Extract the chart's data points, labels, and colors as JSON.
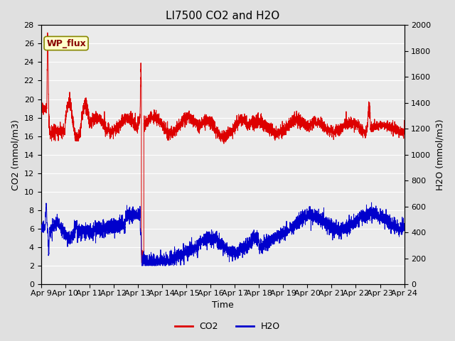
{
  "title": "LI7500 CO2 and H2O",
  "xlabel": "Time",
  "ylabel_left": "CO2 (mmol/m3)",
  "ylabel_right": "H2O (mmol/m3)",
  "ylim_left": [
    0,
    28
  ],
  "ylim_right": [
    0,
    2000
  ],
  "yticks_left": [
    0,
    2,
    4,
    6,
    8,
    10,
    12,
    14,
    16,
    18,
    20,
    22,
    24,
    26,
    28
  ],
  "yticks_right": [
    0,
    200,
    400,
    600,
    800,
    1000,
    1200,
    1400,
    1600,
    1800,
    2000
  ],
  "xtick_labels": [
    "Apr 9",
    "Apr 10",
    "Apr 11",
    "Apr 12",
    "Apr 13",
    "Apr 14",
    "Apr 15",
    "Apr 16",
    "Apr 17",
    "Apr 18",
    "Apr 19",
    "Apr 20",
    "Apr 21",
    "Apr 22",
    "Apr 23",
    "Apr 24"
  ],
  "annotation_text": "WP_flux",
  "co2_color": "#DD0000",
  "h2o_color": "#0000CC",
  "fig_bg_color": "#E0E0E0",
  "plot_bg_color": "#EBEBEB",
  "grid_color": "#FFFFFF",
  "legend_co2": "CO2",
  "legend_h2o": "H2O",
  "title_fontsize": 11,
  "axis_label_fontsize": 9,
  "tick_fontsize": 8,
  "legend_fontsize": 9
}
